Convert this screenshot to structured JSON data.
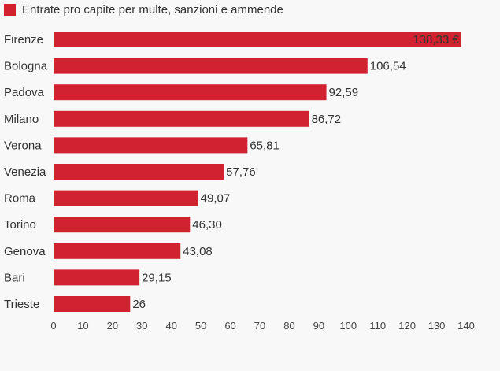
{
  "chart_data": {
    "type": "bar",
    "orientation": "horizontal",
    "legend": {
      "label": "Entrate pro capite per multe, sanzioni e ammende",
      "position": "top-left"
    },
    "categories": [
      "Firenze",
      "Bologna",
      "Padova",
      "Milano",
      "Verona",
      "Venezia",
      "Roma",
      "Torino",
      "Genova",
      "Bari",
      "Trieste"
    ],
    "values": [
      138.33,
      106.54,
      92.59,
      86.72,
      65.81,
      57.76,
      49.07,
      46.3,
      43.08,
      29.15,
      26
    ],
    "value_labels": [
      "138,33 €",
      "106,54",
      "92,59",
      "86,72",
      "65,81",
      "57,76",
      "49,07",
      "46,30",
      "43,08",
      "29,15",
      "26"
    ],
    "xlim": [
      0,
      140
    ],
    "xticks": [
      0,
      10,
      20,
      30,
      40,
      50,
      60,
      70,
      80,
      90,
      100,
      110,
      120,
      130,
      140
    ],
    "grid": false,
    "colors": {
      "bar": "#d1232f",
      "background": "#f8f8f8"
    }
  }
}
